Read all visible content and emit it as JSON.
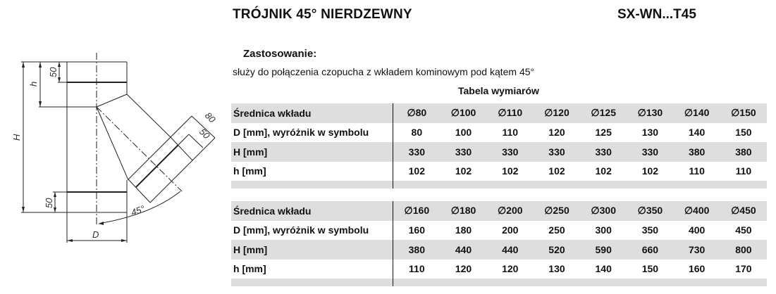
{
  "header": {
    "title": "TRÓJNIK 45° NIERDZEWNY",
    "code": "SX-WN...T45"
  },
  "application": {
    "heading": "Zastosowanie:",
    "text": "służy do połączenia czopucha z wkładem kominowym pod kątem 45°"
  },
  "table_title": "Tabela wymiarów",
  "drawing": {
    "labels": {
      "H": "H",
      "h": "h",
      "top_50": "50",
      "bottom_50": "50",
      "collar_80": "80",
      "collar_50": "50",
      "angle": "45°",
      "D": "D"
    }
  },
  "tables": [
    {
      "rows": [
        {
          "label": "Średnica wkładu",
          "values": [
            "∅80",
            "∅100",
            "∅110",
            "∅120",
            "∅125",
            "∅130",
            "∅140",
            "∅150"
          ]
        },
        {
          "label": "D [mm],  wyróżnik w symbolu",
          "values": [
            "80",
            "100",
            "110",
            "120",
            "125",
            "130",
            "140",
            "150"
          ]
        },
        {
          "label": "H [mm]",
          "values": [
            "330",
            "330",
            "330",
            "330",
            "330",
            "330",
            "380",
            "380"
          ]
        },
        {
          "label": "h [mm]",
          "values": [
            "102",
            "102",
            "102",
            "102",
            "102",
            "102",
            "110",
            "110"
          ]
        }
      ]
    },
    {
      "rows": [
        {
          "label": "Średnica wkładu",
          "values": [
            "∅160",
            "∅180",
            "∅200",
            "∅250",
            "∅300",
            "∅350",
            "∅400",
            "∅450"
          ]
        },
        {
          "label": "D [mm],  wyróżnik w symbolu",
          "values": [
            "160",
            "180",
            "200",
            "250",
            "300",
            "350",
            "400",
            "450"
          ]
        },
        {
          "label": "H [mm]",
          "values": [
            "380",
            "440",
            "440",
            "520",
            "590",
            "660",
            "730",
            "800"
          ]
        },
        {
          "label": "h [mm]",
          "values": [
            "110",
            "120",
            "120",
            "130",
            "140",
            "150",
            "160",
            "170"
          ]
        }
      ]
    }
  ]
}
